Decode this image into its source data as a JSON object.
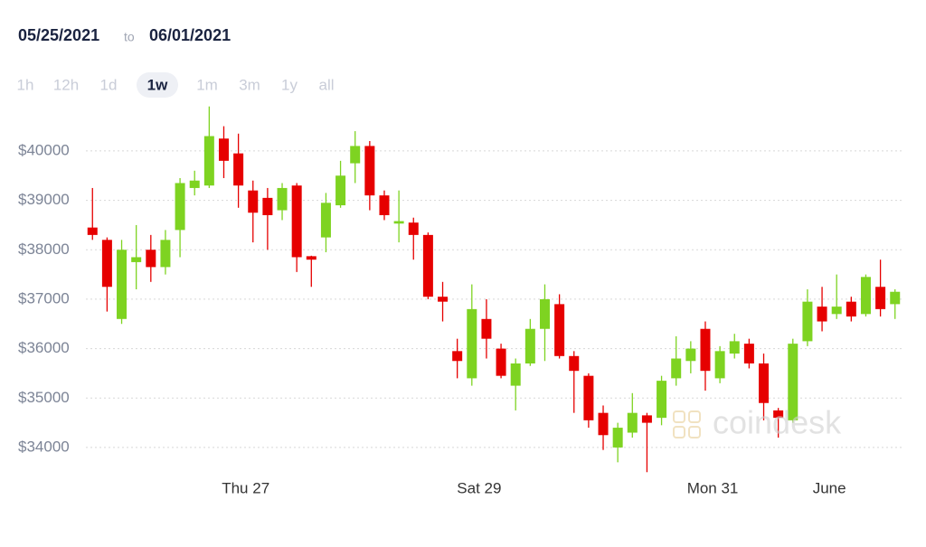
{
  "header": {
    "start": "05/25/2021",
    "to": "to",
    "end": "06/01/2021"
  },
  "range_buttons": {
    "items": [
      "1h",
      "12h",
      "1d",
      "1w",
      "1m",
      "3m",
      "1y",
      "all"
    ],
    "selected": 3
  },
  "watermark": "coindesk",
  "chart_data": {
    "type": "candlestick",
    "x": [
      0,
      1,
      2,
      3,
      4,
      5,
      6,
      7,
      8,
      9,
      10,
      11,
      12,
      13,
      14,
      15,
      16,
      17,
      18,
      19,
      20,
      21,
      22,
      23,
      24,
      25,
      26,
      27,
      28,
      29,
      30,
      31,
      32,
      33,
      34,
      35,
      36,
      37,
      38,
      39,
      40,
      41,
      42,
      43,
      44,
      45,
      46,
      47,
      48,
      49,
      50,
      51,
      52,
      53,
      54,
      55
    ],
    "open": [
      38450,
      38200,
      36600,
      37750,
      38000,
      37650,
      38400,
      39250,
      39300,
      40250,
      39950,
      39200,
      39050,
      38800,
      39300,
      37870,
      38250,
      38900,
      39750,
      40100,
      39100,
      38530,
      38550,
      38300,
      37050,
      35950,
      35400,
      36600,
      36000,
      35250,
      35700,
      36400,
      36900,
      35850,
      35450,
      34700,
      34000,
      34300,
      34650,
      34600,
      35400,
      35750,
      36400,
      35400,
      35900,
      36100,
      35700,
      34750,
      34550,
      36150,
      36850,
      36700,
      36950,
      36700,
      37250,
      36900
    ],
    "high": [
      39250,
      38250,
      38200,
      38500,
      38300,
      38400,
      39450,
      39600,
      40900,
      40500,
      40350,
      39400,
      39250,
      39350,
      39350,
      37880,
      39150,
      39800,
      40400,
      40200,
      39200,
      39200,
      38650,
      38350,
      37350,
      36200,
      37300,
      37000,
      36100,
      35800,
      36600,
      37300,
      37100,
      35950,
      35500,
      34850,
      34500,
      35100,
      34700,
      35450,
      36250,
      36150,
      36550,
      36050,
      36300,
      36200,
      35900,
      34800,
      36200,
      37200,
      37250,
      37500,
      37050,
      37500,
      37800,
      37200
    ],
    "low": [
      38200,
      36750,
      36500,
      37200,
      37350,
      37500,
      37850,
      39100,
      39250,
      39450,
      38850,
      38150,
      38000,
      38600,
      37550,
      37250,
      37950,
      38850,
      39350,
      38800,
      38600,
      38150,
      37800,
      37000,
      36550,
      35400,
      35250,
      35800,
      35400,
      34750,
      35650,
      35750,
      35800,
      34700,
      34400,
      33950,
      33700,
      34200,
      33500,
      34450,
      35250,
      35500,
      35150,
      35300,
      35800,
      35600,
      34550,
      34200,
      34500,
      36050,
      36350,
      36600,
      36550,
      36650,
      36650,
      36600
    ],
    "close": [
      38300,
      37250,
      38000,
      37850,
      37650,
      38200,
      39350,
      39400,
      40300,
      39800,
      39300,
      38750,
      38700,
      39250,
      37850,
      37800,
      38950,
      39500,
      40100,
      39100,
      38700,
      38580,
      38300,
      37050,
      36950,
      35750,
      36800,
      36200,
      35450,
      35700,
      36400,
      37000,
      35850,
      35550,
      34550,
      34250,
      34400,
      34700,
      34500,
      35350,
      35800,
      36000,
      35550,
      35950,
      36150,
      35700,
      34900,
      34600,
      36100,
      36950,
      36550,
      36850,
      36650,
      37450,
      36800,
      37150
    ],
    "up_color": "#7ed321",
    "down_color": "#e60000",
    "xlim": [
      -0.45,
      55.45
    ],
    "xticks": [
      {
        "value": 10.5,
        "label": "Thu 27"
      },
      {
        "value": 26.5,
        "label": "Sat 29"
      },
      {
        "value": 42.5,
        "label": "Mon 31"
      },
      {
        "value": 50.5,
        "label": "June"
      }
    ],
    "ylim": [
      33450,
      40950
    ],
    "yticks": [
      {
        "value": 34000,
        "label": "$34000"
      },
      {
        "value": 35000,
        "label": "$35000"
      },
      {
        "value": 36000,
        "label": "$36000"
      },
      {
        "value": 37000,
        "label": "$37000"
      },
      {
        "value": 38000,
        "label": "$38000"
      },
      {
        "value": 39000,
        "label": "$39000"
      },
      {
        "value": 40000,
        "label": "$40000"
      }
    ],
    "grid": true
  }
}
